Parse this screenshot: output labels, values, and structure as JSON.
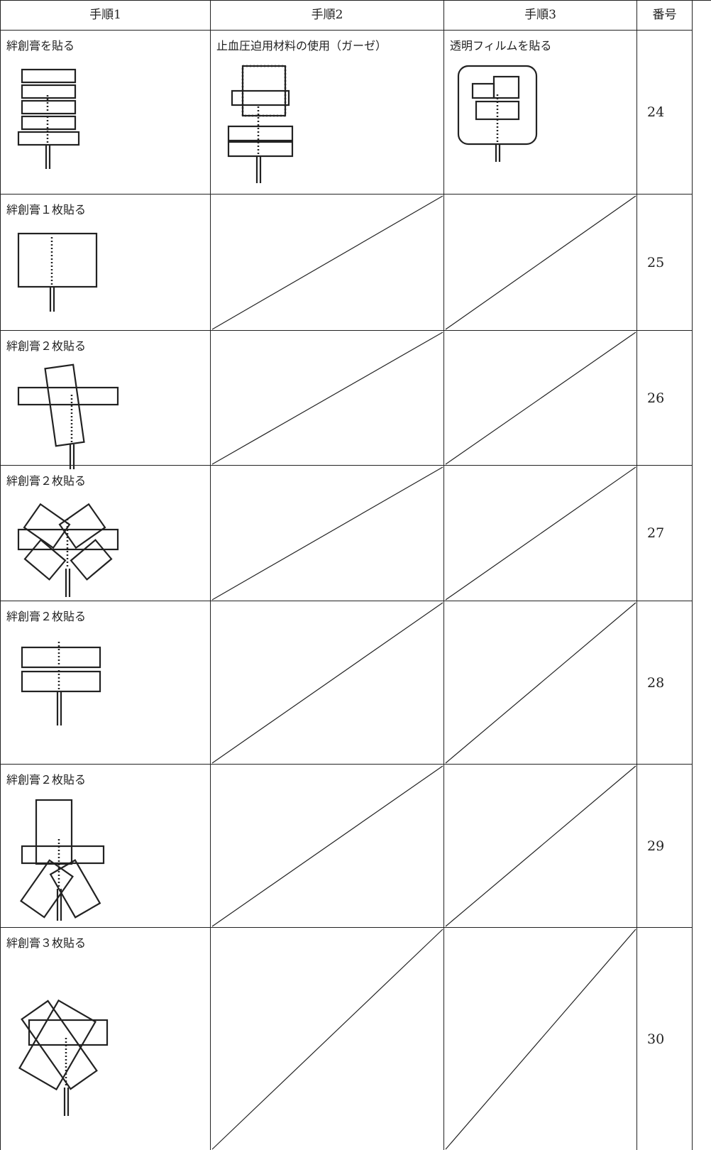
{
  "table": {
    "header": [
      "手順1",
      "手順2",
      "手順3",
      "番号"
    ],
    "rows": [
      {
        "step1": "絆創膏を貼る",
        "step2": "止血圧迫用材料の使用（ガーゼ）",
        "step3": "透明フィルムを貼る",
        "number": 24
      },
      {
        "step1": "絆創膏１枚貼る",
        "number": 25
      },
      {
        "step1": "絆創膏２枚貼る",
        "number": 26
      },
      {
        "step1": "絆創膏２枚貼る",
        "number": 27
      },
      {
        "step1": "絆創膏２枚貼る",
        "number": 28
      },
      {
        "step1": "絆創膏２枚貼る",
        "number": 29
      },
      {
        "step1": "絆創膏３枚貼る",
        "number": 30
      }
    ]
  }
}
